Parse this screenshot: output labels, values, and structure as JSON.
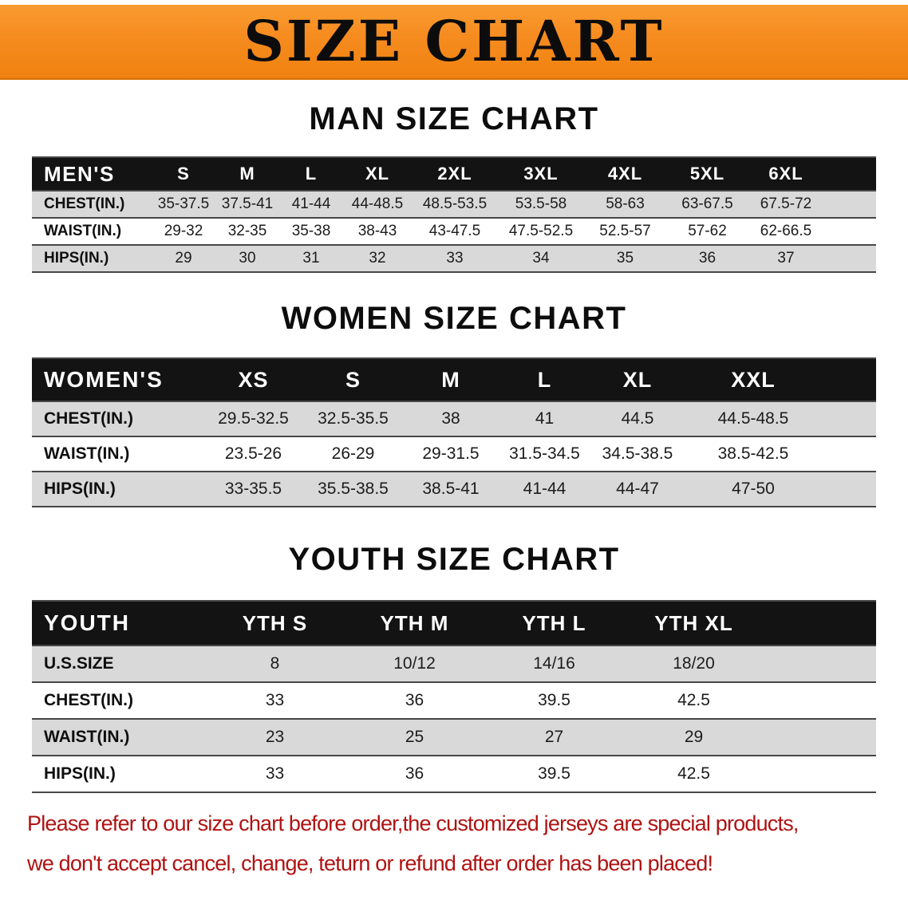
{
  "banner": {
    "title": "SIZE CHART"
  },
  "colors": {
    "banner_orange": "#f68b1f",
    "table_header_black": "#131313",
    "row_gray": "#d9d9d9",
    "disclaimer_red": "#b01212"
  },
  "chart_data": [
    {
      "type": "table",
      "title": "MAN SIZE CHART",
      "columns": [
        "MEN'S",
        "S",
        "M",
        "L",
        "XL",
        "2XL",
        "3XL",
        "4XL",
        "5XL",
        "6XL"
      ],
      "rows": [
        [
          "CHEST(IN.)",
          "35-37.5",
          "37.5-41",
          "41-44",
          "44-48.5",
          "48.5-53.5",
          "53.5-58",
          "58-63",
          "63-67.5",
          "67.5-72"
        ],
        [
          "WAIST(IN.)",
          "29-32",
          "32-35",
          "35-38",
          "38-43",
          "43-47.5",
          "47.5-52.5",
          "52.5-57",
          "57-62",
          "62-66.5"
        ],
        [
          "HIPS(IN.)",
          "29",
          "30",
          "31",
          "32",
          "33",
          "34",
          "35",
          "36",
          "37"
        ]
      ]
    },
    {
      "type": "table",
      "title": "WOMEN SIZE CHART",
      "columns": [
        "WOMEN'S",
        "XS",
        "S",
        "M",
        "L",
        "XL",
        "XXL"
      ],
      "rows": [
        [
          "CHEST(IN.)",
          "29.5-32.5",
          "32.5-35.5",
          "38",
          "41",
          "44.5",
          "44.5-48.5"
        ],
        [
          "WAIST(IN.)",
          "23.5-26",
          "26-29",
          "29-31.5",
          "31.5-34.5",
          "34.5-38.5",
          "38.5-42.5"
        ],
        [
          "HIPS(IN.)",
          "33-35.5",
          "35.5-38.5",
          "38.5-41",
          "41-44",
          "44-47",
          "47-50"
        ]
      ]
    },
    {
      "type": "table",
      "title": "YOUTH SIZE CHART",
      "columns": [
        "YOUTH",
        "YTH S",
        "YTH M",
        "YTH L",
        "YTH XL"
      ],
      "rows": [
        [
          "U.S.SIZE",
          "8",
          "10/12",
          "14/16",
          "18/20"
        ],
        [
          "CHEST(IN.)",
          "33",
          "36",
          "39.5",
          "42.5"
        ],
        [
          "WAIST(IN.)",
          "23",
          "25",
          "27",
          "29"
        ],
        [
          "HIPS(IN.)",
          "33",
          "36",
          "39.5",
          "42.5"
        ]
      ]
    }
  ],
  "disclaimer": {
    "lines": [
      "Please refer to our size chart before order,the customized jerseys are special products,",
      "we don't accept cancel, change, teturn or refund after order has been placed!"
    ]
  }
}
